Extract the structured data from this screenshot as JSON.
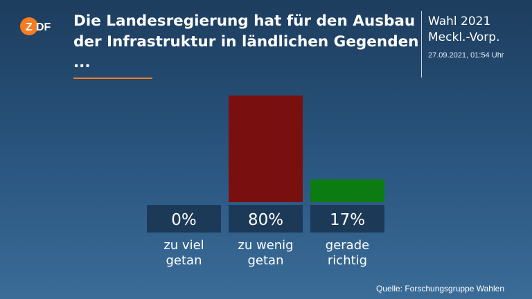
{
  "logo": {
    "text": "ZDF",
    "color": "#f57c20"
  },
  "title_lines": [
    "Die Landesregierung hat für den Ausbau",
    "der Infrastruktur in ländlichen Gegenden",
    "..."
  ],
  "side": {
    "title_lines": [
      "Wahl 2021",
      "Meckl.-Vorp."
    ],
    "date": "27.09.2021, 01:54 Uhr"
  },
  "source": "Quelle: Forschungsgruppe Wahlen",
  "chart_data": {
    "type": "bar",
    "categories": [
      [
        "zu viel",
        "getan"
      ],
      [
        "zu wenig",
        "getan"
      ],
      [
        "gerade",
        "richtig"
      ]
    ],
    "values": [
      0,
      80,
      17
    ],
    "value_labels": [
      "0%",
      "80%",
      "17%"
    ],
    "colors": [
      "#7a0f10",
      "#7a0f10",
      "#0c7b12"
    ],
    "label_box_color": "#1c3a58",
    "ylim": [
      0,
      80
    ]
  }
}
